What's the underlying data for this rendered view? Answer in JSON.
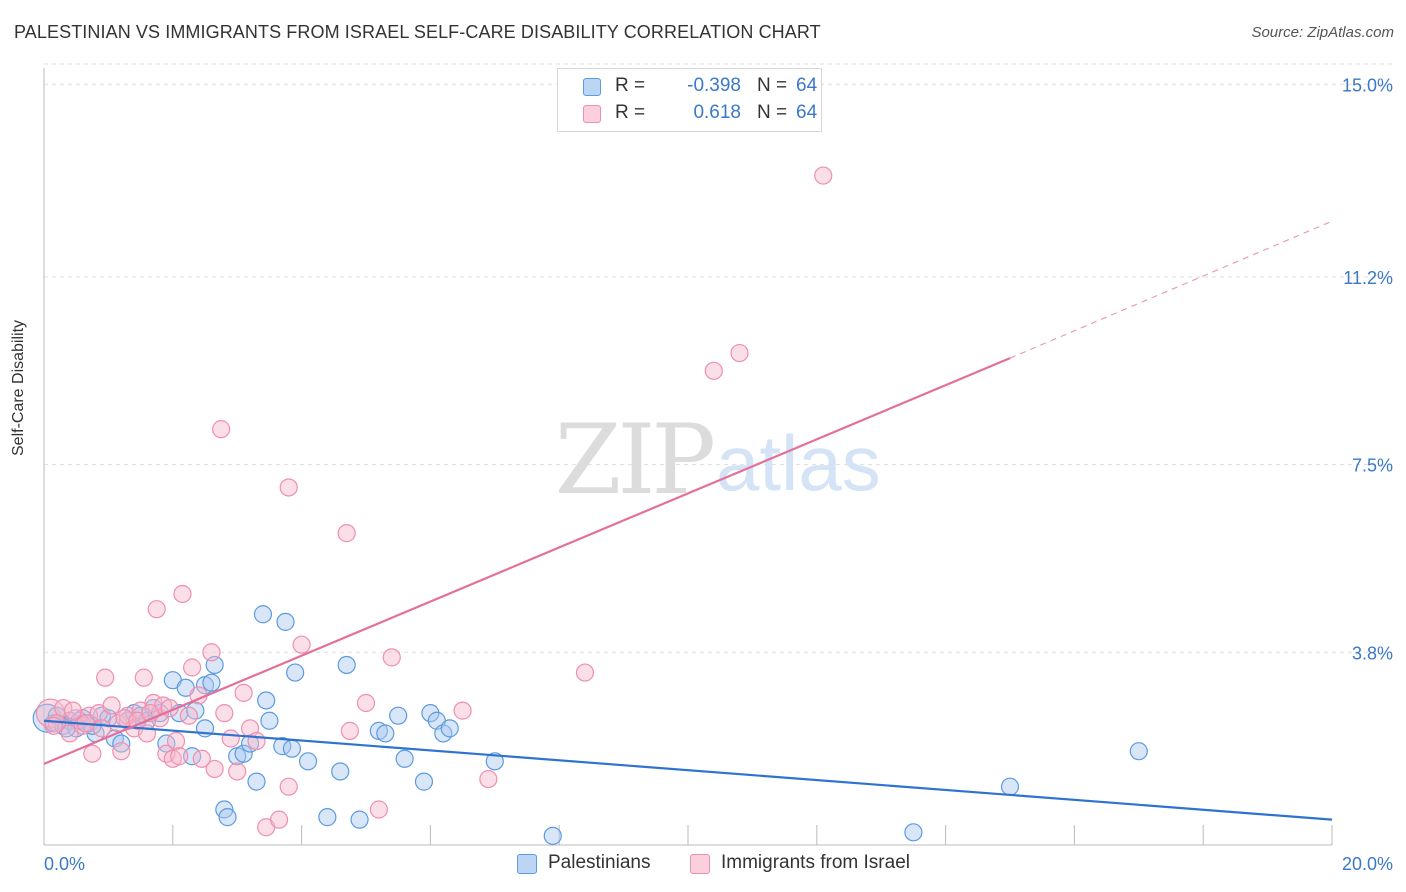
{
  "title": "PALESTINIAN VS IMMIGRANTS FROM ISRAEL SELF-CARE DISABILITY CORRELATION CHART",
  "source": "Source: ZipAtlas.com",
  "watermark": {
    "zip": "ZIP",
    "atlas": "atlas"
  },
  "legend": [
    {
      "r_label": "R =",
      "r_value": "-0.398",
      "n_label": "N =",
      "n_value": "64",
      "color": "#a9c8f0"
    },
    {
      "r_label": "R =",
      "r_value": "0.618",
      "n_label": "N =",
      "n_value": "64",
      "color": "#f7b8cb"
    }
  ],
  "bottom_legend": [
    {
      "label": "Palestinians",
      "color": "#a9c8f0"
    },
    {
      "label": "Immigrants from Israel",
      "color": "#f7b8cb"
    }
  ],
  "chart_data": {
    "type": "scatter",
    "title": "PALESTINIAN VS IMMIGRANTS FROM ISRAEL SELF-CARE DISABILITY CORRELATION CHART",
    "xlabel": "",
    "ylabel": "Self-Care Disability",
    "xlim": [
      0,
      20
    ],
    "ylim": [
      0,
      15.4
    ],
    "x_tick_labels": [
      "0.0%",
      "20.0%"
    ],
    "y_ticks": [
      3.8,
      7.5,
      11.2,
      15.0
    ],
    "y_tick_labels": [
      "3.8%",
      "7.5%",
      "11.2%",
      "15.0%"
    ],
    "grid": true,
    "legend_position": "top-center",
    "series": [
      {
        "name": "Palestinians",
        "color": "#5b9be0",
        "fill": "#a9c8f0",
        "trend": {
          "x": [
            0,
            20
          ],
          "y": [
            2.45,
            0.5
          ],
          "color": "#2f73d0",
          "dashed_extension": false
        },
        "points": [
          {
            "x": 0.05,
            "y": 2.5,
            "big": true
          },
          {
            "x": 0.15,
            "y": 2.4
          },
          {
            "x": 0.3,
            "y": 2.35
          },
          {
            "x": 0.4,
            "y": 2.45
          },
          {
            "x": 0.5,
            "y": 2.3
          },
          {
            "x": 0.6,
            "y": 2.5
          },
          {
            "x": 0.7,
            "y": 2.4
          },
          {
            "x": 0.8,
            "y": 2.2
          },
          {
            "x": 0.9,
            "y": 2.55
          },
          {
            "x": 1.0,
            "y": 2.5
          },
          {
            "x": 1.1,
            "y": 2.1
          },
          {
            "x": 1.2,
            "y": 2.0
          },
          {
            "x": 1.3,
            "y": 2.45
          },
          {
            "x": 1.4,
            "y": 2.6
          },
          {
            "x": 1.5,
            "y": 2.55
          },
          {
            "x": 1.6,
            "y": 2.45
          },
          {
            "x": 1.7,
            "y": 2.7
          },
          {
            "x": 1.8,
            "y": 2.6
          },
          {
            "x": 1.9,
            "y": 2.0
          },
          {
            "x": 2.0,
            "y": 3.25
          },
          {
            "x": 2.1,
            "y": 2.6
          },
          {
            "x": 2.2,
            "y": 3.1
          },
          {
            "x": 2.3,
            "y": 1.75
          },
          {
            "x": 2.35,
            "y": 2.65
          },
          {
            "x": 2.5,
            "y": 2.3
          },
          {
            "x": 2.5,
            "y": 3.15
          },
          {
            "x": 2.6,
            "y": 3.2
          },
          {
            "x": 2.65,
            "y": 3.55
          },
          {
            "x": 2.8,
            "y": 0.7
          },
          {
            "x": 2.85,
            "y": 0.55
          },
          {
            "x": 3.0,
            "y": 1.75
          },
          {
            "x": 3.1,
            "y": 1.8
          },
          {
            "x": 3.2,
            "y": 2.0
          },
          {
            "x": 3.3,
            "y": 1.25
          },
          {
            "x": 3.4,
            "y": 4.55
          },
          {
            "x": 3.45,
            "y": 2.85
          },
          {
            "x": 3.5,
            "y": 2.45
          },
          {
            "x": 3.7,
            "y": 1.95
          },
          {
            "x": 3.75,
            "y": 4.4
          },
          {
            "x": 3.85,
            "y": 1.9
          },
          {
            "x": 3.9,
            "y": 3.4
          },
          {
            "x": 4.1,
            "y": 1.65
          },
          {
            "x": 4.4,
            "y": 0.55
          },
          {
            "x": 4.6,
            "y": 1.45
          },
          {
            "x": 4.7,
            "y": 3.55
          },
          {
            "x": 4.9,
            "y": 0.5
          },
          {
            "x": 5.2,
            "y": 2.25
          },
          {
            "x": 5.3,
            "y": 2.2
          },
          {
            "x": 5.5,
            "y": 2.55
          },
          {
            "x": 5.6,
            "y": 1.7
          },
          {
            "x": 5.9,
            "y": 1.25
          },
          {
            "x": 6.0,
            "y": 2.6
          },
          {
            "x": 6.1,
            "y": 2.45
          },
          {
            "x": 6.2,
            "y": 2.2
          },
          {
            "x": 6.3,
            "y": 2.3
          },
          {
            "x": 7.0,
            "y": 1.65
          },
          {
            "x": 7.9,
            "y": 0.18
          },
          {
            "x": 13.5,
            "y": 0.25
          },
          {
            "x": 15.0,
            "y": 1.15
          },
          {
            "x": 17.0,
            "y": 1.85
          },
          {
            "x": 0.2,
            "y": 2.55
          },
          {
            "x": 0.35,
            "y": 2.3
          },
          {
            "x": 0.55,
            "y": 2.45
          },
          {
            "x": 0.75,
            "y": 2.35
          }
        ]
      },
      {
        "name": "Immigrants from Israel",
        "color": "#ef8fae",
        "fill": "#f7b8cb",
        "trend": {
          "x": [
            0,
            15.0
          ],
          "y": [
            1.6,
            9.6
          ],
          "color": "#e4709a",
          "dashed_extension": true,
          "extension_to": [
            20,
            12.3
          ]
        },
        "points": [
          {
            "x": 0.1,
            "y": 2.6,
            "big": true
          },
          {
            "x": 0.2,
            "y": 2.4
          },
          {
            "x": 0.3,
            "y": 2.7
          },
          {
            "x": 0.4,
            "y": 2.2
          },
          {
            "x": 0.5,
            "y": 2.5
          },
          {
            "x": 0.6,
            "y": 2.35
          },
          {
            "x": 0.7,
            "y": 2.55
          },
          {
            "x": 0.75,
            "y": 1.8
          },
          {
            "x": 0.85,
            "y": 2.6
          },
          {
            "x": 0.95,
            "y": 3.3
          },
          {
            "x": 1.05,
            "y": 2.75
          },
          {
            "x": 1.15,
            "y": 2.4
          },
          {
            "x": 1.2,
            "y": 1.85
          },
          {
            "x": 1.3,
            "y": 2.55
          },
          {
            "x": 1.4,
            "y": 2.3
          },
          {
            "x": 1.5,
            "y": 2.65
          },
          {
            "x": 1.55,
            "y": 3.3
          },
          {
            "x": 1.6,
            "y": 2.2
          },
          {
            "x": 1.7,
            "y": 2.8
          },
          {
            "x": 1.75,
            "y": 4.65
          },
          {
            "x": 1.8,
            "y": 2.5
          },
          {
            "x": 1.85,
            "y": 2.75
          },
          {
            "x": 1.9,
            "y": 1.8
          },
          {
            "x": 1.95,
            "y": 2.7
          },
          {
            "x": 2.0,
            "y": 1.7
          },
          {
            "x": 2.05,
            "y": 2.05
          },
          {
            "x": 2.1,
            "y": 1.75
          },
          {
            "x": 2.15,
            "y": 4.95
          },
          {
            "x": 2.25,
            "y": 2.55
          },
          {
            "x": 2.3,
            "y": 3.5
          },
          {
            "x": 2.4,
            "y": 2.95
          },
          {
            "x": 2.45,
            "y": 1.7
          },
          {
            "x": 2.6,
            "y": 3.8
          },
          {
            "x": 2.65,
            "y": 1.5
          },
          {
            "x": 2.8,
            "y": 2.6
          },
          {
            "x": 2.75,
            "y": 8.2
          },
          {
            "x": 2.9,
            "y": 2.1
          },
          {
            "x": 3.0,
            "y": 1.45
          },
          {
            "x": 3.1,
            "y": 3.0
          },
          {
            "x": 3.2,
            "y": 2.3
          },
          {
            "x": 3.3,
            "y": 2.05
          },
          {
            "x": 3.45,
            "y": 0.35
          },
          {
            "x": 3.65,
            "y": 0.5
          },
          {
            "x": 3.8,
            "y": 1.15
          },
          {
            "x": 3.8,
            "y": 7.05
          },
          {
            "x": 4.0,
            "y": 3.95
          },
          {
            "x": 4.7,
            "y": 6.15
          },
          {
            "x": 4.75,
            "y": 2.25
          },
          {
            "x": 5.0,
            "y": 2.8
          },
          {
            "x": 5.2,
            "y": 0.7
          },
          {
            "x": 5.4,
            "y": 3.7
          },
          {
            "x": 6.5,
            "y": 2.65
          },
          {
            "x": 6.9,
            "y": 1.3
          },
          {
            "x": 8.4,
            "y": 3.4
          },
          {
            "x": 10.4,
            "y": 9.35
          },
          {
            "x": 10.8,
            "y": 9.7
          },
          {
            "x": 12.1,
            "y": 13.2
          },
          {
            "x": 0.15,
            "y": 2.35
          },
          {
            "x": 0.45,
            "y": 2.65
          },
          {
            "x": 0.65,
            "y": 2.4
          },
          {
            "x": 0.9,
            "y": 2.3
          },
          {
            "x": 1.25,
            "y": 2.5
          },
          {
            "x": 1.45,
            "y": 2.45
          },
          {
            "x": 1.65,
            "y": 2.6
          }
        ]
      }
    ]
  }
}
